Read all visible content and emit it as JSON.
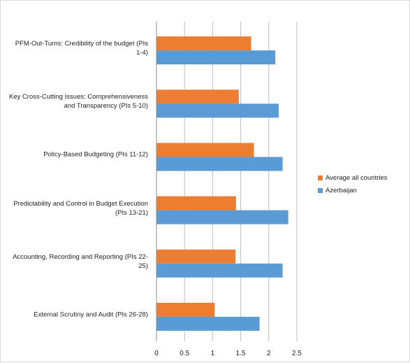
{
  "chart_data": {
    "type": "bar",
    "orientation": "horizontal",
    "title": "",
    "xlabel": "",
    "ylabel": "",
    "xlim": [
      0,
      2.5
    ],
    "ticks": [
      "0",
      "0.5",
      "1",
      "1.5",
      "2",
      "2.5"
    ],
    "grid": true,
    "legend_position": "right",
    "categories": [
      "PFM-Out-Turns: Credibility of the budget (PIs 1-4)",
      "Key Cross-Cutting Issues: Comprehensiveness and Transparency (PIs 5-10)",
      "Policy-Based Budgeting (PIs 11-12)",
      "Predictability and Control in Budget Execution (PIs 13-21)",
      "Accounting, Recording and Reporting (PIs 22-25)",
      "External Scrutiny and Audit (PIs 26-28)"
    ],
    "series": [
      {
        "name": "Average all countries",
        "color": "#ed7d31",
        "values": [
          1.68,
          1.46,
          1.73,
          1.41,
          1.4,
          1.03
        ]
      },
      {
        "name": "Azerbaijan",
        "color": "#5b9bd5",
        "values": [
          2.11,
          2.17,
          2.24,
          2.34,
          2.24,
          1.83
        ]
      }
    ]
  }
}
